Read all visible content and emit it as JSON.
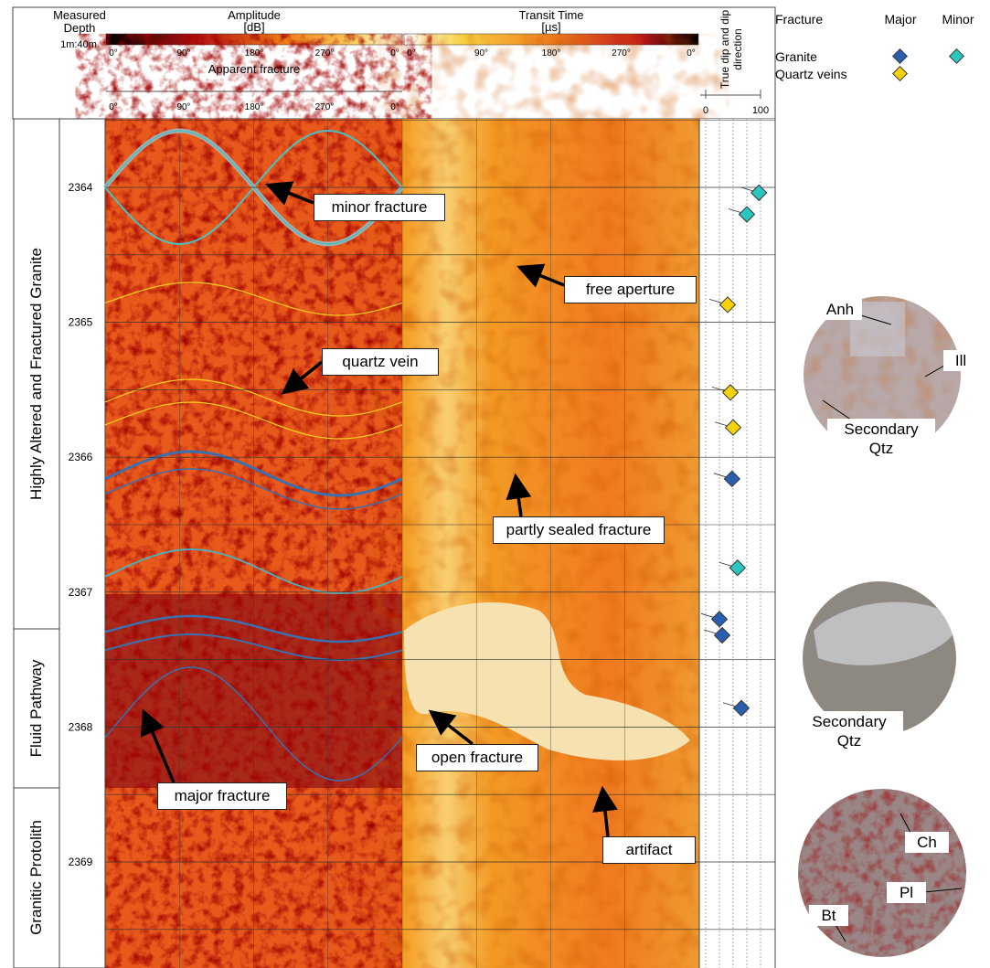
{
  "header": {
    "depth_label": "Measured Depth",
    "scale": "1m:40m",
    "amplitude": {
      "title": "Amplitude",
      "unit": "[dB]",
      "ticks": [
        "0°",
        "90°",
        "180°",
        "270°",
        "0°"
      ]
    },
    "transit": {
      "title": "Transit Time",
      "unit": "[µs]",
      "ticks": [
        "0°",
        "90°",
        "180°",
        "270°",
        "0°"
      ]
    },
    "apparent": {
      "title": "Apparent fracture",
      "ticks": [
        "0°",
        "90°",
        "180°",
        "270°",
        "0°"
      ]
    },
    "dip": {
      "title": "True dip and dip direction",
      "ticks": [
        0,
        100
      ]
    }
  },
  "legend": {
    "title": "Fracture",
    "columns": [
      "Major",
      "Minor"
    ],
    "rows": [
      "Granite",
      "Quartz veins"
    ]
  },
  "zones": [
    "Highly Altered and Fractured Granite",
    "Fluid Pathway",
    "Granitic Protolith"
  ],
  "depths": [
    2364,
    2365,
    2366,
    2367,
    2368,
    2369
  ],
  "dips": {
    "granite_minor": [
      {
        "depth": 2364.04,
        "dip": 97
      },
      {
        "depth": 2364.2,
        "dip": 75
      },
      {
        "depth": 2366.82,
        "dip": 58
      }
    ],
    "quartz": [
      {
        "depth": 2364.87,
        "dip": 40
      },
      {
        "depth": 2365.52,
        "dip": 45
      },
      {
        "depth": 2365.78,
        "dip": 50
      }
    ],
    "granite_major": [
      {
        "depth": 2366.16,
        "dip": 48
      },
      {
        "depth": 2367.2,
        "dip": 25
      },
      {
        "depth": 2367.32,
        "dip": 30
      },
      {
        "depth": 2367.86,
        "dip": 65
      }
    ]
  },
  "annotations": [
    "minor fracture",
    "free aperture",
    "quartz vein",
    "partly sealed fracture",
    "open fracture",
    "major fracture",
    "artifact"
  ],
  "photos": [
    {
      "labels": [
        "Anh",
        "Ill",
        "Secondary Qtz"
      ]
    },
    {
      "labels": [
        "Secondary Qtz"
      ]
    },
    {
      "labels": [
        "Ch",
        "Pl",
        "Bt"
      ]
    }
  ]
}
